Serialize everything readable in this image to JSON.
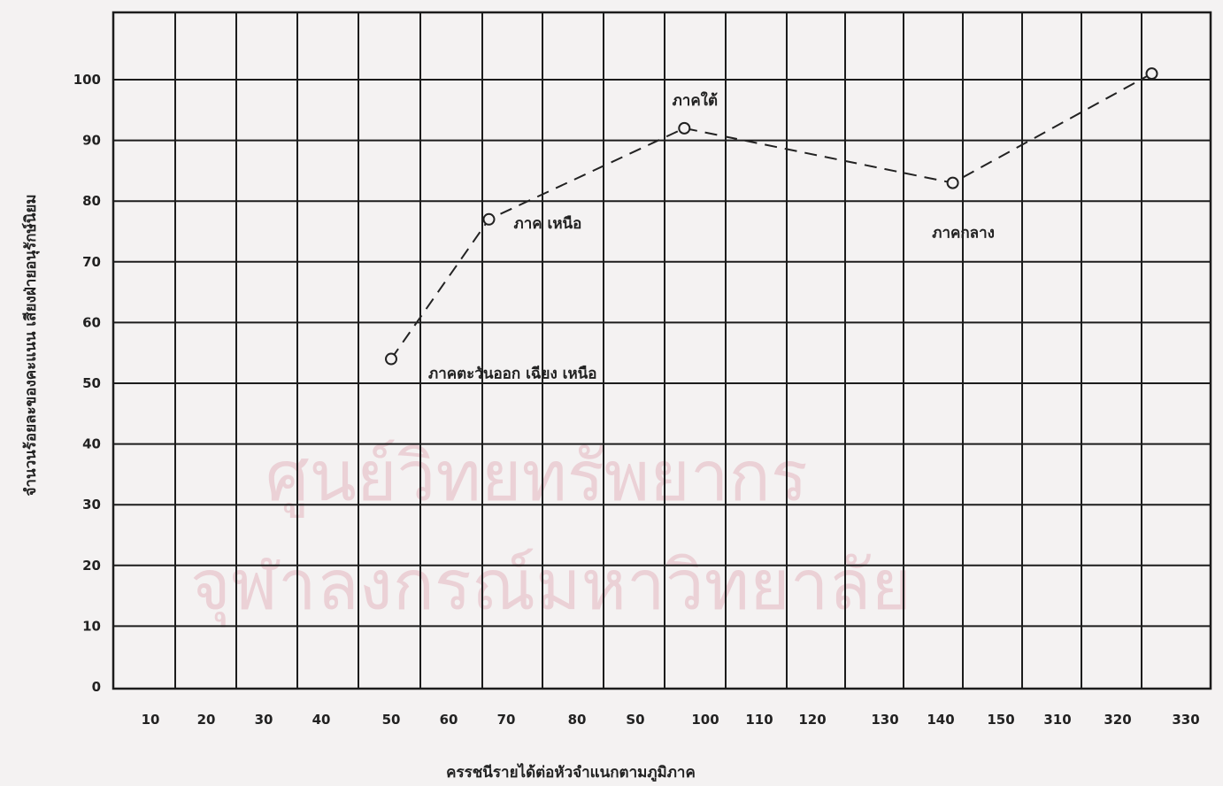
{
  "watermark": {
    "line1": "ศูนย์วิทยทรัพยากร",
    "line2": "จุฬาลงกรณ์มหาวิทยาลัย"
  },
  "chart_data": {
    "type": "line",
    "title": "",
    "xlabel": "ครรชนีรายได้ต่อหัวจำแนกตามภูมิภาค",
    "ylabel": "จำนวนร้อยละของคะแนน เสียงฝ่ายอนุรักษ์นิยม",
    "x_ticks": [
      "10",
      "20",
      "30",
      "40",
      "50",
      "60",
      "70",
      "80",
      "S0",
      "100",
      "110",
      "120",
      "130",
      "140",
      "150",
      "310",
      "320",
      "330"
    ],
    "y_ticks": [
      "0",
      "10",
      "20",
      "30",
      "40",
      "50",
      "60",
      "70",
      "80",
      "90",
      "100"
    ],
    "ylim": [
      0,
      100
    ],
    "grid": true,
    "line_style": "dashed",
    "series": [
      {
        "points": [
          {
            "x": 50,
            "y": 54,
            "label": "ภาคตะวันออก เฉียง เหนือ"
          },
          {
            "x": 67,
            "y": 77,
            "label": "ภาค เหนือ"
          },
          {
            "x": 97,
            "y": 92,
            "label": "ภาคใต้"
          },
          {
            "x": 142,
            "y": 83,
            "label": "ภาคกลาง"
          },
          {
            "x": 325,
            "y": 101,
            "label": ""
          }
        ]
      }
    ]
  }
}
